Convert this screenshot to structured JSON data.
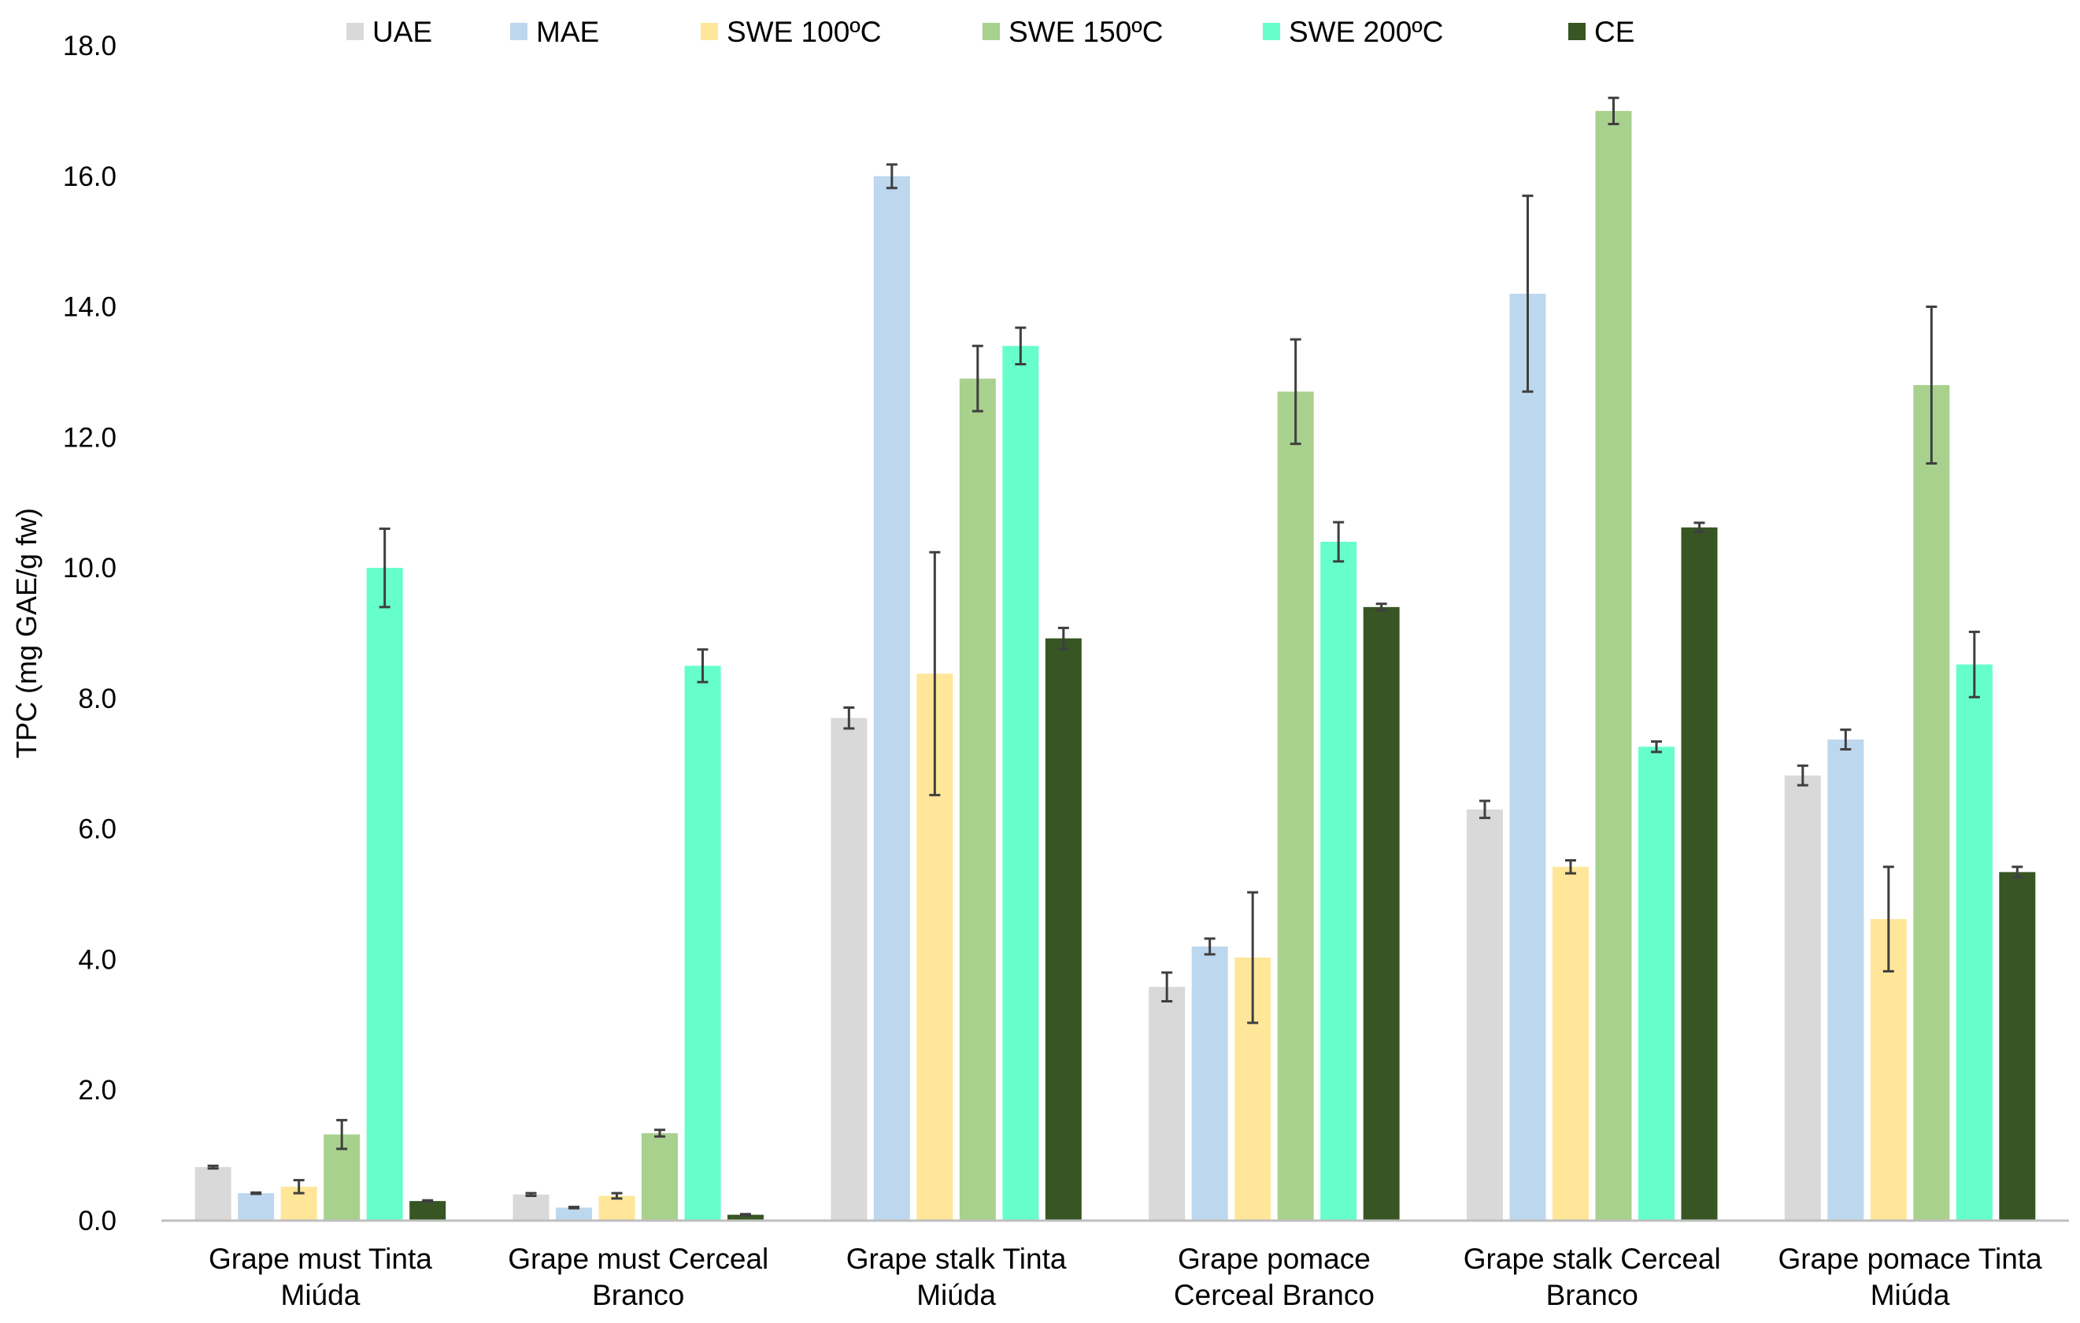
{
  "chart_data": {
    "type": "bar",
    "title": "",
    "xlabel": "",
    "ylabel": "TPC (mg GAE/g fw)",
    "ylim": [
      0,
      18
    ],
    "yticks": [
      "0.0",
      "2.0",
      "4.0",
      "6.0",
      "8.0",
      "10.0",
      "12.0",
      "14.0",
      "16.0",
      "18.0"
    ],
    "ytick_values": [
      0,
      2,
      4,
      6,
      8,
      10,
      12,
      14,
      16,
      18
    ],
    "grid": false,
    "legend_position": "top",
    "categories": [
      [
        "Grape must Tinta",
        "Miúda"
      ],
      [
        "Grape must Cerceal",
        "Branco"
      ],
      [
        "Grape stalk Tinta",
        "Miúda"
      ],
      [
        "Grape pomace",
        "Cerceal Branco"
      ],
      [
        "Grape stalk Cerceal",
        "Branco"
      ],
      [
        "Grape pomace Tinta",
        "Miúda"
      ]
    ],
    "series": [
      {
        "name": "UAE",
        "color": "#d9d9d9",
        "values": [
          0.82,
          0.4,
          7.7,
          3.58,
          6.3,
          6.82
        ],
        "errors": [
          0.02,
          0.02,
          0.16,
          0.22,
          0.13,
          0.15
        ]
      },
      {
        "name": "MAE",
        "color": "#bdd7ee",
        "values": [
          0.42,
          0.2,
          16.0,
          4.2,
          14.2,
          7.37
        ],
        "errors": [
          0.01,
          0.01,
          0.18,
          0.12,
          1.5,
          0.15
        ]
      },
      {
        "name": "SWE 100ºC",
        "color": "#ffe699",
        "values": [
          0.52,
          0.38,
          8.38,
          4.03,
          5.42,
          4.62
        ],
        "errors": [
          0.1,
          0.04,
          1.86,
          1.0,
          0.1,
          0.8
        ]
      },
      {
        "name": "SWE 150ºC",
        "color": "#a9d18e",
        "values": [
          1.32,
          1.34,
          12.9,
          12.7,
          17.0,
          12.8
        ],
        "errors": [
          0.22,
          0.05,
          0.5,
          0.8,
          0.2,
          1.2
        ]
      },
      {
        "name": "SWE 200ºC",
        "color": "#66ffcc",
        "values": [
          10.0,
          8.5,
          13.4,
          10.4,
          7.26,
          8.52
        ],
        "errors": [
          0.6,
          0.25,
          0.28,
          0.3,
          0.08,
          0.5
        ]
      },
      {
        "name": "CE",
        "color": "#375623",
        "values": [
          0.3,
          0.09,
          8.92,
          9.4,
          10.62,
          5.34
        ],
        "errors": [
          0.01,
          0.01,
          0.16,
          0.05,
          0.07,
          0.08
        ]
      }
    ]
  }
}
